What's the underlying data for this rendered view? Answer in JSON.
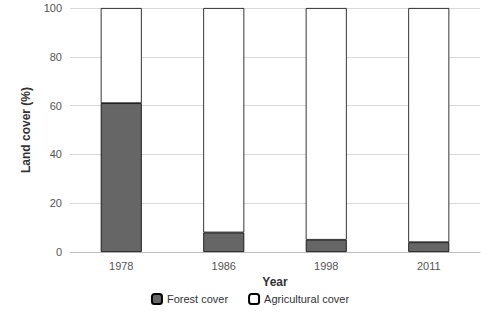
{
  "chart_data": {
    "type": "bar",
    "stacked": true,
    "x_label": "Year",
    "y_label": "Land cover (%)",
    "categories": [
      "1978",
      "1986",
      "1998",
      "2011"
    ],
    "series": [
      {
        "name": "Forest cover",
        "color": "#666666",
        "values": [
          61,
          8,
          5,
          4
        ]
      },
      {
        "name": "Agricultural cover",
        "color": "#ffffff",
        "values": [
          39,
          92,
          95,
          96
        ]
      }
    ],
    "ylim": [
      0,
      100
    ],
    "yticks": [
      0,
      20,
      40,
      60,
      80,
      100
    ],
    "grid": true,
    "legend": "bottom"
  }
}
